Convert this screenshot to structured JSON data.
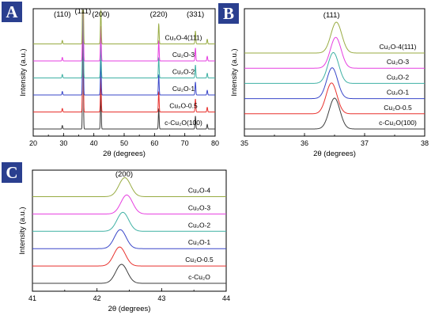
{
  "chart_data": [
    {
      "panel": "A",
      "type": "line",
      "xlabel": "2θ (degrees)",
      "ylabel": "Intensity (a.u.)",
      "xlim": [
        20,
        80
      ],
      "xticks": [
        20,
        30,
        40,
        50,
        60,
        70,
        80
      ],
      "peak_labels": [
        {
          "text": "(110)",
          "x": 29.6
        },
        {
          "text": "(111)",
          "x": 36.4
        },
        {
          "text": "(200)",
          "x": 42.3
        },
        {
          "text": "(220)",
          "x": 61.4
        },
        {
          "text": "(331)",
          "x": 73.5
        }
      ],
      "peaks": [
        {
          "x": 29.6,
          "h": 0.03
        },
        {
          "x": 36.4,
          "h": 1.0
        },
        {
          "x": 42.3,
          "h": 0.3
        },
        {
          "x": 61.4,
          "h": 0.17
        },
        {
          "x": 73.5,
          "h": 0.11
        },
        {
          "x": 77.4,
          "h": 0.04
        }
      ],
      "series": [
        {
          "name": "c-Cu2O(100)",
          "label": "c-Cu₂O(100)",
          "color": "#3d3d3d",
          "scale": 1.0
        },
        {
          "name": "Cu2O-0.5",
          "label": "Cu₂O-0.5",
          "color": "#e8312d",
          "scale": 1.0
        },
        {
          "name": "Cu2O-1",
          "label": "Cu₂O-1",
          "color": "#3a47c9",
          "scale": 1.0
        },
        {
          "name": "Cu2O-2",
          "label": "Cu₂O-2",
          "color": "#3fb1a4",
          "scale": 1.0
        },
        {
          "name": "Cu2O-3",
          "label": "Cu₂O-3",
          "color": "#e63fe0",
          "scale": 1.0
        },
        {
          "name": "Cu2O-4(111)",
          "label": "Cu₂O-4(111)",
          "color": "#98ab42",
          "scale": 1.0
        }
      ]
    },
    {
      "panel": "B",
      "type": "line",
      "xlabel": "2θ (degrees)",
      "ylabel": "Intensity (a.u.)",
      "xlim": [
        35,
        38
      ],
      "xticks": [
        35,
        36,
        37,
        38
      ],
      "peak_labels": [
        {
          "text": "(111)",
          "x": 36.45
        }
      ],
      "peak_width": 0.09,
      "series": [
        {
          "name": "c-Cu2O(100)",
          "label": "c-Cu₂O(100)",
          "color": "#3d3d3d",
          "center": 36.5
        },
        {
          "name": "Cu2O-0.5",
          "label": "Cu₂O-0.5",
          "color": "#e8312d",
          "center": 36.45
        },
        {
          "name": "Cu2O-1",
          "label": "Cu₂O-1",
          "color": "#3a47c9",
          "center": 36.46
        },
        {
          "name": "Cu2O-2",
          "label": "Cu₂O-2",
          "color": "#3fb1a4",
          "center": 36.48
        },
        {
          "name": "Cu2O-3",
          "label": "Cu₂O-3",
          "color": "#e63fe0",
          "center": 36.52
        },
        {
          "name": "Cu2O-4(111)",
          "label": "Cu₂O-4(111)",
          "color": "#98ab42",
          "center": 36.53
        }
      ]
    },
    {
      "panel": "C",
      "type": "line",
      "xlabel": "2θ (degrees)",
      "ylabel": "Intensity (a.u.)",
      "xlim": [
        41,
        44
      ],
      "xticks": [
        41,
        42,
        43,
        44
      ],
      "peak_labels": [
        {
          "text": "(200)",
          "x": 42.42
        }
      ],
      "peak_width": 0.09,
      "series": [
        {
          "name": "c-Cu2O",
          "label": "c-Cu₂O",
          "color": "#3d3d3d",
          "center": 42.38
        },
        {
          "name": "Cu2O-0.5",
          "label": "Cu₂O-0.5",
          "color": "#e8312d",
          "center": 42.35
        },
        {
          "name": "Cu2O-1",
          "label": "Cu₂O-1",
          "color": "#3a47c9",
          "center": 42.36
        },
        {
          "name": "Cu2O-2",
          "label": "Cu₂O-2",
          "color": "#3fb1a4",
          "center": 42.4
        },
        {
          "name": "Cu2O-3",
          "label": "Cu₂O-3",
          "color": "#e63fe0",
          "center": 42.46
        },
        {
          "name": "Cu2O-4",
          "label": "Cu₂O-4",
          "color": "#98ab42",
          "center": 42.43
        }
      ]
    }
  ]
}
